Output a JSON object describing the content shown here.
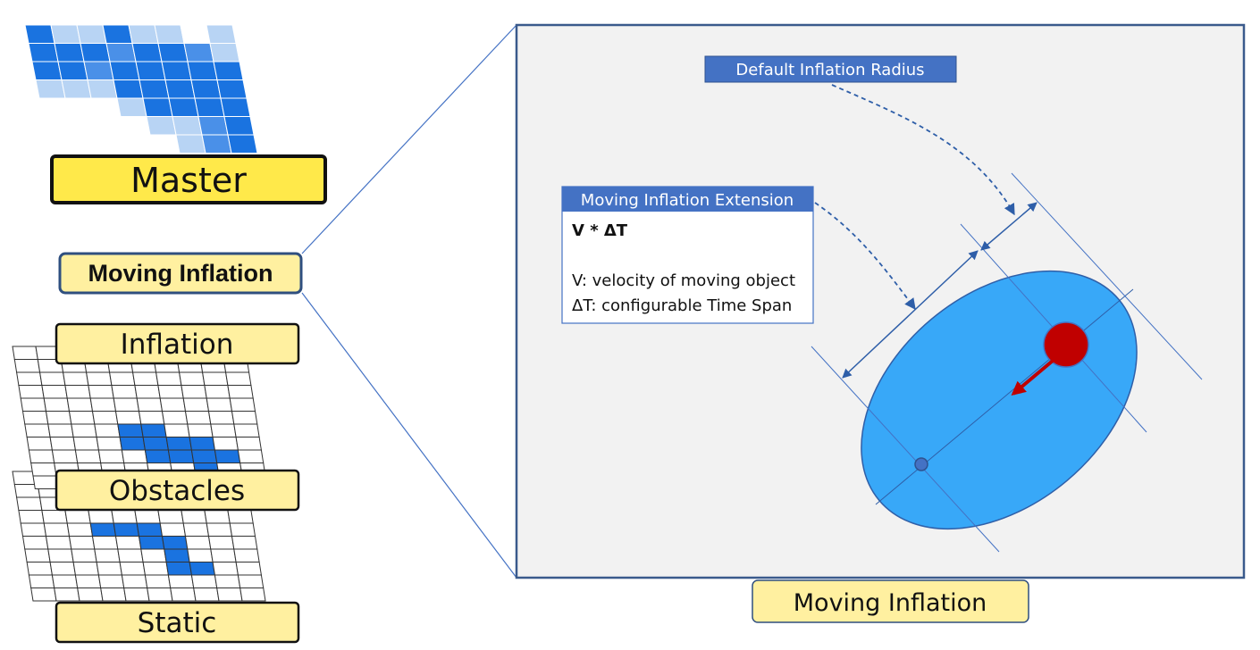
{
  "layers": {
    "master_label": "Master",
    "moving_inflation_label": "Moving Inflation",
    "inflation_label": "Inflation",
    "obstacles_label": "Obstacles",
    "static_label": "Static"
  },
  "detail": {
    "default_radius_label": "Default Inflation Radius",
    "extension_title": "Moving Inflation Extension",
    "formula": "V * ΔT",
    "velocity_desc": "V: velocity of moving object",
    "timespan_desc": "ΔT: configurable Time Span",
    "caption": "Moving Inflation"
  },
  "colors": {
    "cell_dark": "#1a73e0",
    "cell_mid": "#4a90e8",
    "cell_light": "#b8d4f4",
    "label_fill": "#fff0a0",
    "master_fill": "#ffe94a",
    "callout_header": "#4472c4",
    "ellipse_fill": "#38a8f8",
    "robot": "#c00000",
    "panel_bg": "#f2f2f2",
    "panel_border": "#3a5a8c"
  },
  "grids": {
    "master": [
      [
        1,
        3,
        3,
        1,
        3,
        3,
        0,
        3
      ],
      [
        1,
        1,
        1,
        2,
        1,
        1,
        2,
        3
      ],
      [
        1,
        1,
        2,
        1,
        1,
        1,
        1,
        1
      ],
      [
        3,
        3,
        3,
        1,
        1,
        1,
        1,
        1
      ],
      [
        0,
        0,
        0,
        3,
        1,
        1,
        1,
        1
      ],
      [
        0,
        0,
        0,
        0,
        3,
        3,
        2,
        1
      ],
      [
        0,
        0,
        0,
        0,
        0,
        3,
        2,
        1
      ]
    ],
    "inflation": [
      [
        0,
        0,
        0,
        0,
        0,
        0,
        0,
        0,
        0,
        0
      ],
      [
        0,
        0,
        0,
        0,
        0,
        0,
        0,
        0,
        0,
        0
      ],
      [
        0,
        0,
        0,
        0,
        0,
        0,
        0,
        0,
        0,
        0
      ],
      [
        0,
        0,
        0,
        0,
        0,
        0,
        0,
        0,
        0,
        0
      ],
      [
        0,
        0,
        0,
        0,
        0,
        0,
        0,
        0,
        0,
        0
      ],
      [
        0,
        0,
        0,
        0,
        0,
        0,
        0,
        0,
        0,
        0
      ],
      [
        0,
        0,
        0,
        0,
        1,
        1,
        0,
        0,
        0,
        0
      ],
      [
        0,
        0,
        0,
        0,
        1,
        1,
        1,
        1,
        0,
        0
      ],
      [
        0,
        0,
        0,
        0,
        0,
        1,
        1,
        1,
        1,
        0
      ],
      [
        0,
        0,
        0,
        0,
        0,
        0,
        0,
        1,
        0,
        0
      ],
      [
        0,
        0,
        0,
        0,
        0,
        0,
        0,
        0,
        0,
        0
      ]
    ],
    "obstacles": [
      [
        0,
        0,
        0,
        0,
        0,
        0,
        0,
        0,
        0,
        0
      ],
      [
        0,
        0,
        0,
        0,
        0,
        0,
        0,
        0,
        0,
        0
      ],
      [
        0,
        0,
        0,
        0,
        0,
        0,
        0,
        0,
        0,
        0
      ],
      [
        0,
        0,
        0,
        0,
        0,
        0,
        0,
        0,
        0,
        0
      ],
      [
        0,
        0,
        0,
        1,
        1,
        1,
        0,
        0,
        0,
        0
      ],
      [
        0,
        0,
        0,
        0,
        0,
        1,
        1,
        0,
        0,
        0
      ],
      [
        0,
        0,
        0,
        0,
        0,
        0,
        1,
        0,
        0,
        0
      ],
      [
        0,
        0,
        0,
        0,
        0,
        0,
        1,
        1,
        0,
        0
      ],
      [
        0,
        0,
        0,
        0,
        0,
        0,
        0,
        0,
        0,
        0
      ],
      [
        0,
        0,
        0,
        0,
        0,
        0,
        0,
        0,
        0,
        0
      ]
    ]
  }
}
